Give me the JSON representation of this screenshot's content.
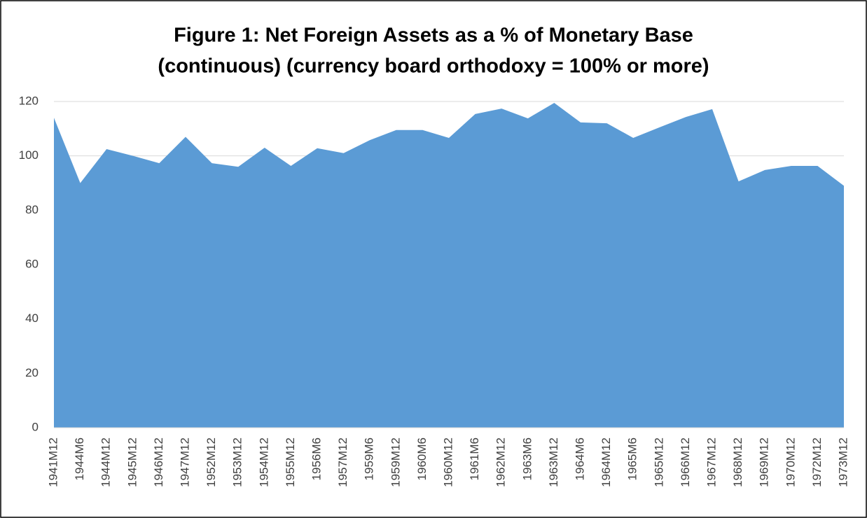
{
  "chart_data": {
    "type": "area",
    "title": [
      "Figure 1: Net Foreign Assets as a % of Monetary Base",
      "(continuous) (currency board orthodoxy = 100% or more)"
    ],
    "categories": [
      "1941M12",
      "1944M6",
      "1944M12",
      "1945M12",
      "1946M12",
      "1947M12",
      "1952M12",
      "1953M12",
      "1954M12",
      "1955M12",
      "1956M6",
      "1957M12",
      "1959M6",
      "1959M12",
      "1960M6",
      "1960M12",
      "1961M6",
      "1962M12",
      "1963M6",
      "1963M12",
      "1964M6",
      "1964M12",
      "1965M6",
      "1965M12",
      "1966M12",
      "1967M12",
      "1968M12",
      "1969M12",
      "1970M12",
      "1972M12",
      "1973M12"
    ],
    "values": [
      114,
      90,
      102.5,
      100,
      97.3,
      107,
      97.3,
      96,
      103,
      96.3,
      102.8,
      101,
      105.8,
      109.5,
      109.5,
      106.6,
      115.4,
      117.4,
      113.8,
      119.5,
      112.3,
      112,
      106.6,
      110.5,
      114.3,
      117.2,
      90.6,
      94.8,
      96.3,
      96.3,
      89
    ],
    "color": "#5b9bd5",
    "ylim": [
      0,
      120
    ],
    "yticks": [
      0,
      20,
      40,
      60,
      80,
      100,
      120
    ],
    "grid": true
  }
}
